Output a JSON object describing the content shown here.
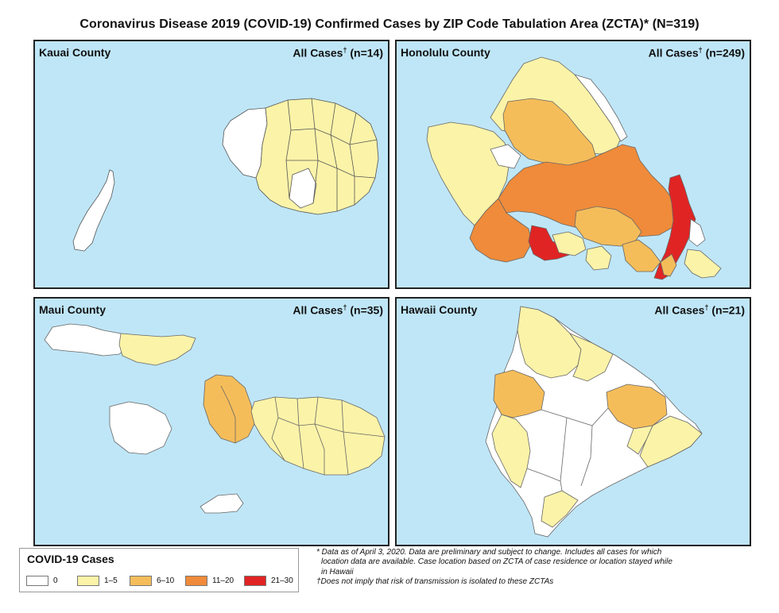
{
  "title": "Coronavirus Disease 2019 (COVID-19) Confirmed Cases by ZIP Code Tabulation Area (ZCTA)* (N=319)",
  "panels": [
    {
      "name": "Kauai County",
      "count_prefix": "All Cases",
      "dagger": "†",
      "count_suffix": " (n=14)"
    },
    {
      "name": "Honolulu County",
      "count_prefix": "All Cases",
      "dagger": "†",
      "count_suffix": " (n=249)"
    },
    {
      "name": "Maui County",
      "count_prefix": "All Cases",
      "dagger": "†",
      "count_suffix": " (n=35)"
    },
    {
      "name": "Hawaii County",
      "count_prefix": "All Cases",
      "dagger": "†",
      "count_suffix": " (n=21)"
    }
  ],
  "legend": {
    "title": "COVID-19 Cases",
    "items": [
      {
        "label": "0",
        "color": "#ffffff"
      },
      {
        "label": "1–5",
        "color": "#fbf3a8"
      },
      {
        "label": "6–10",
        "color": "#f5bd5a"
      },
      {
        "label": "11–20",
        "color": "#ef8b3a"
      },
      {
        "label": "21–30",
        "color": "#e02424"
      }
    ]
  },
  "colors": {
    "ocean": "#bfe6f7",
    "border": "#222222"
  },
  "notes": {
    "line1": "* Data as of April 3, 2020. Data are preliminary and subject to change. Includes all cases for which",
    "line2": "location data are available. Case location based on ZCTA of case residence or location stayed while",
    "line3": "in Hawaii",
    "line4": "†Does not imply that risk of transmission is isolated to these ZCTAs"
  }
}
